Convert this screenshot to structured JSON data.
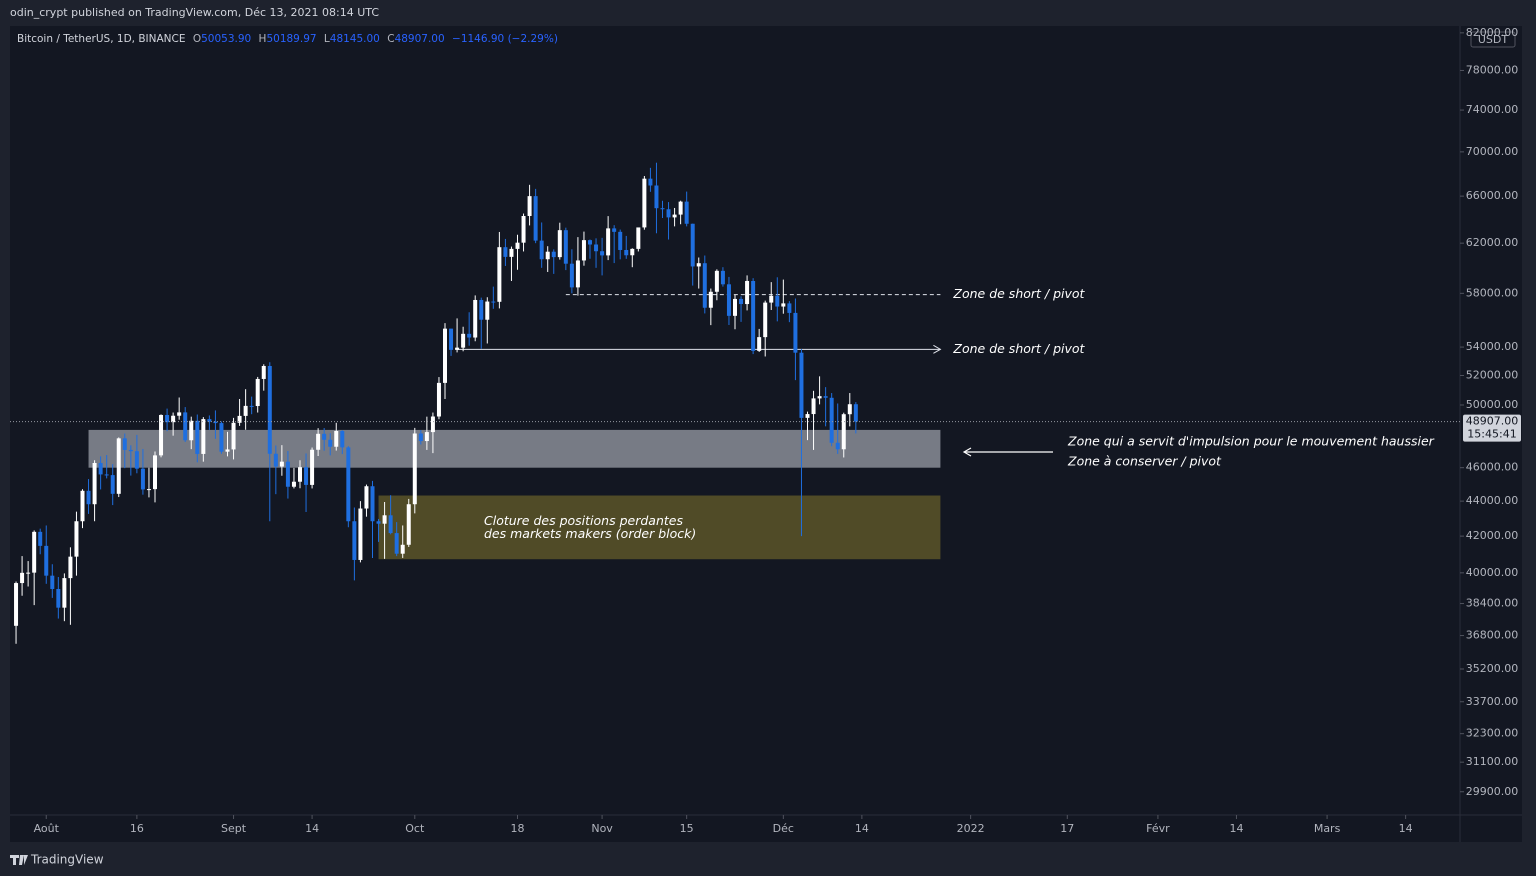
{
  "header": {
    "publisher": "odin_crypt published on TradingView.com, Déc 13, 2021 08:14 UTC"
  },
  "legend": {
    "symbol": "Bitcoin / TetherUS, 1D, BINANCE",
    "items": [
      {
        "key": "O",
        "value": "50053.90"
      },
      {
        "key": "H",
        "value": "50189.97"
      },
      {
        "key": "L",
        "value": "48145.00"
      },
      {
        "key": "C",
        "value": "48907.00"
      }
    ],
    "change": "−1146.90 (−2.29%)"
  },
  "footer": {
    "brand": "TradingView"
  },
  "chart_data": {
    "type": "candlestick",
    "log_scale": true,
    "up_color": "#ffffff",
    "down_color": "#1f6fe0",
    "unit": "USDT",
    "xlim": [
      "2021-07-26",
      "2022-03-23"
    ],
    "ylim": [
      28990,
      82750
    ],
    "xticks": [
      {
        "value": "2021-08-01",
        "label": "Août"
      },
      {
        "value": "2021-08-16",
        "label": "16"
      },
      {
        "value": "2021-09-01",
        "label": "Sept"
      },
      {
        "value": "2021-09-14",
        "label": "14"
      },
      {
        "value": "2021-10-01",
        "label": "Oct"
      },
      {
        "value": "2021-10-18",
        "label": "18"
      },
      {
        "value": "2021-11-01",
        "label": "Nov"
      },
      {
        "value": "2021-11-15",
        "label": "15"
      },
      {
        "value": "2021-12-01",
        "label": "Déc"
      },
      {
        "value": "2021-12-14",
        "label": "14"
      },
      {
        "value": "2022-01-01",
        "label": "2022"
      },
      {
        "value": "2022-01-17",
        "label": "17"
      },
      {
        "value": "2022-02-01",
        "label": "Févr"
      },
      {
        "value": "2022-02-14",
        "label": "14"
      },
      {
        "value": "2022-03-01",
        "label": "Mars"
      },
      {
        "value": "2022-03-14",
        "label": "14"
      }
    ],
    "yticks": [
      {
        "value": 82000,
        "label": "82000.00"
      },
      {
        "value": 78000,
        "label": "78000.00"
      },
      {
        "value": 74000,
        "label": "74000.00"
      },
      {
        "value": 70000,
        "label": "70000.00"
      },
      {
        "value": 66000,
        "label": "66000.00"
      },
      {
        "value": 62000,
        "label": "62000.00"
      },
      {
        "value": 58000,
        "label": "58000.00"
      },
      {
        "value": 54000,
        "label": "54000.00"
      },
      {
        "value": 52000,
        "label": "52000.00"
      },
      {
        "value": 50000,
        "label": "50000.00"
      },
      {
        "value": 46000,
        "label": "46000.00"
      },
      {
        "value": 44000,
        "label": "44000.00"
      },
      {
        "value": 42000,
        "label": "42000.00"
      },
      {
        "value": 40000,
        "label": "40000.00"
      },
      {
        "value": 38400,
        "label": "38400.00"
      },
      {
        "value": 36800,
        "label": "36800.00"
      },
      {
        "value": 35200,
        "label": "35200.00"
      },
      {
        "value": 33700,
        "label": "33700.00"
      },
      {
        "value": 32300,
        "label": "32300.00"
      },
      {
        "value": 31100,
        "label": "31100.00"
      },
      {
        "value": 29900,
        "label": "29900.00"
      }
    ],
    "last_price": {
      "value": 48907,
      "label": "48907.00",
      "countdown": "15:45:41"
    },
    "x": [
      "2021-07-27",
      "2021-07-28",
      "2021-07-29",
      "2021-07-30",
      "2021-07-31",
      "2021-08-01",
      "2021-08-02",
      "2021-08-03",
      "2021-08-04",
      "2021-08-05",
      "2021-08-06",
      "2021-08-07",
      "2021-08-08",
      "2021-08-09",
      "2021-08-10",
      "2021-08-11",
      "2021-08-12",
      "2021-08-13",
      "2021-08-14",
      "2021-08-15",
      "2021-08-16",
      "2021-08-17",
      "2021-08-18",
      "2021-08-19",
      "2021-08-20",
      "2021-08-21",
      "2021-08-22",
      "2021-08-23",
      "2021-08-24",
      "2021-08-25",
      "2021-08-26",
      "2021-08-27",
      "2021-08-28",
      "2021-08-29",
      "2021-08-30",
      "2021-08-31",
      "2021-09-01",
      "2021-09-02",
      "2021-09-03",
      "2021-09-04",
      "2021-09-05",
      "2021-09-06",
      "2021-09-07",
      "2021-09-08",
      "2021-09-09",
      "2021-09-10",
      "2021-09-11",
      "2021-09-12",
      "2021-09-13",
      "2021-09-14",
      "2021-09-15",
      "2021-09-16",
      "2021-09-17",
      "2021-09-18",
      "2021-09-19",
      "2021-09-20",
      "2021-09-21",
      "2021-09-22",
      "2021-09-23",
      "2021-09-24",
      "2021-09-25",
      "2021-09-26",
      "2021-09-27",
      "2021-09-28",
      "2021-09-29",
      "2021-09-30",
      "2021-10-01",
      "2021-10-02",
      "2021-10-03",
      "2021-10-04",
      "2021-10-05",
      "2021-10-06",
      "2021-10-07",
      "2021-10-08",
      "2021-10-09",
      "2021-10-10",
      "2021-10-11",
      "2021-10-12",
      "2021-10-13",
      "2021-10-14",
      "2021-10-15",
      "2021-10-16",
      "2021-10-17",
      "2021-10-18",
      "2021-10-19",
      "2021-10-20",
      "2021-10-21",
      "2021-10-22",
      "2021-10-23",
      "2021-10-24",
      "2021-10-25",
      "2021-10-26",
      "2021-10-27",
      "2021-10-28",
      "2021-10-29",
      "2021-10-30",
      "2021-10-31",
      "2021-11-01",
      "2021-11-02",
      "2021-11-03",
      "2021-11-04",
      "2021-11-05",
      "2021-11-06",
      "2021-11-07",
      "2021-11-08",
      "2021-11-09",
      "2021-11-10",
      "2021-11-11",
      "2021-11-12",
      "2021-11-13",
      "2021-11-14",
      "2021-11-15",
      "2021-11-16",
      "2021-11-17",
      "2021-11-18",
      "2021-11-19",
      "2021-11-20",
      "2021-11-21",
      "2021-11-22",
      "2021-11-23",
      "2021-11-24",
      "2021-11-25",
      "2021-11-26",
      "2021-11-27",
      "2021-11-28",
      "2021-11-29",
      "2021-11-30",
      "2021-12-01",
      "2021-12-02",
      "2021-12-03",
      "2021-12-04",
      "2021-12-05",
      "2021-12-06",
      "2021-12-07",
      "2021-12-08",
      "2021-12-09",
      "2021-12-10",
      "2021-12-11",
      "2021-12-12",
      "2021-12-13"
    ],
    "open": [
      37280,
      39460,
      40000,
      40010,
      42240,
      41460,
      39850,
      39150,
      38190,
      39720,
      40870,
      42840,
      44610,
      43820,
      46290,
      45590,
      45550,
      44430,
      47830,
      47100,
      47020,
      45940,
      44690,
      44710,
      46760,
      49340,
      48870,
      49290,
      49510,
      47710,
      48960,
      46850,
      49070,
      48900,
      48810,
      46990,
      47130,
      48830,
      49280,
      49940,
      49930,
      51760,
      52660,
      46860,
      46070,
      46370,
      44850,
      45150,
      46030,
      44960,
      47110,
      48120,
      47740,
      47300,
      48300,
      47260,
      42840,
      40690,
      43570,
      44880,
      42840,
      42700,
      43180,
      42170,
      41030,
      41520,
      43820,
      48140,
      47660,
      48230,
      49240,
      51490,
      55340,
      53800,
      53960,
      54960,
      54690,
      57490,
      56000,
      57370,
      57350,
      61670,
      60880,
      61530,
      62040,
      64280,
      66000,
      62210,
      60690,
      61300,
      60860,
      63080,
      60330,
      58460,
      60590,
      62250,
      61890,
      61340,
      61000,
      63230,
      62940,
      61440,
      61010,
      61530,
      63310,
      67550,
      66940,
      64950,
      64860,
      64160,
      64400,
      65520,
      63620,
      60110,
      60370,
      56900,
      58120,
      59760,
      58700,
      56290,
      57570,
      57180,
      58960,
      53730,
      54720,
      57290,
      57810,
      56990,
      57230,
      56510,
      53600,
      49150,
      49400,
      50440,
      50590,
      50480,
      47550,
      47140,
      49390,
      50050
    ],
    "high": [
      39540,
      40900,
      40630,
      42320,
      42420,
      42600,
      40460,
      39780,
      39970,
      41380,
      43390,
      44700,
      45310,
      46460,
      46700,
      46780,
      46220,
      47890,
      48140,
      47390,
      48050,
      47160,
      46000,
      47000,
      49380,
      49760,
      49500,
      50500,
      49860,
      49230,
      49370,
      49200,
      49310,
      49640,
      48910,
      48240,
      49150,
      50400,
      51060,
      50560,
      51900,
      52780,
      52920,
      47380,
      47400,
      47030,
      45990,
      46460,
      46880,
      47250,
      48480,
      48490,
      48160,
      48830,
      48350,
      47340,
      43630,
      44000,
      44980,
      45200,
      42970,
      43950,
      44350,
      42790,
      42600,
      44130,
      48500,
      48360,
      49230,
      49500,
      51890,
      55750,
      55340,
      56100,
      55480,
      56560,
      57840,
      57670,
      57700,
      58520,
      62930,
      62350,
      61720,
      62700,
      64490,
      67000,
      66640,
      63730,
      61750,
      61490,
      63710,
      63290,
      61500,
      62500,
      62960,
      62300,
      62400,
      62440,
      64270,
      63500,
      63130,
      62600,
      61580,
      63290,
      67790,
      68530,
      69000,
      65600,
      65480,
      64970,
      65600,
      66400,
      63630,
      60830,
      60990,
      58370,
      59880,
      60050,
      59280,
      57880,
      57770,
      59400,
      59180,
      55320,
      57440,
      58870,
      59250,
      59070,
      57400,
      57600,
      53860,
      49560,
      50950,
      51940,
      51200,
      50800,
      50100,
      49490,
      50800,
      50190
    ],
    "low": [
      36400,
      38800,
      39280,
      38320,
      41000,
      39420,
      38690,
      37640,
      37510,
      37330,
      39850,
      42450,
      43260,
      42840,
      44690,
      45350,
      43770,
      44240,
      45970,
      45520,
      45660,
      44380,
      44220,
      43930,
      46640,
      48290,
      48000,
      49030,
      47600,
      47150,
      46330,
      46370,
      48370,
      47800,
      46860,
      46700,
      46510,
      48630,
      48380,
      49390,
      49500,
      50960,
      42840,
      44410,
      45510,
      44150,
      44750,
      44760,
      43370,
      44750,
      46720,
      47050,
      46760,
      47060,
      46840,
      42500,
      39600,
      40560,
      43100,
      40800,
      41680,
      40750,
      42100,
      40900,
      40800,
      41400,
      43290,
      47440,
      47100,
      46900,
      49060,
      50400,
      53370,
      53620,
      53700,
      54100,
      54420,
      53880,
      54260,
      56820,
      56850,
      60150,
      58960,
      59850,
      61320,
      63480,
      62000,
      60000,
      59670,
      59520,
      60660,
      59820,
      58000,
      57820,
      60170,
      60730,
      60000,
      59400,
      60620,
      60380,
      60680,
      60720,
      60050,
      61320,
      63120,
      66380,
      62820,
      64110,
      62300,
      63400,
      63580,
      63400,
      58600,
      58370,
      56470,
      55600,
      57470,
      58520,
      55610,
      55300,
      55840,
      56700,
      53500,
      53650,
      53330,
      56730,
      55880,
      56450,
      55820,
      51680,
      42000,
      47720,
      47100,
      50040,
      48600,
      47330,
      46850,
      46630,
      48600,
      48145
    ],
    "close": [
      39460,
      40000,
      40010,
      42240,
      41460,
      39850,
      39150,
      38190,
      39720,
      40870,
      42840,
      44610,
      43820,
      46290,
      45590,
      45550,
      44430,
      47830,
      47100,
      47020,
      45940,
      44690,
      44710,
      46760,
      49340,
      48870,
      49290,
      49510,
      47710,
      48960,
      46850,
      49070,
      48900,
      48810,
      46990,
      47130,
      48830,
      49280,
      49940,
      49930,
      51760,
      52660,
      46860,
      46070,
      46370,
      44850,
      45150,
      46030,
      44960,
      47110,
      48120,
      47740,
      47300,
      48300,
      47260,
      42840,
      40690,
      43570,
      44880,
      42840,
      42700,
      43180,
      42170,
      41030,
      41520,
      43820,
      48140,
      47660,
      48230,
      49240,
      51490,
      55340,
      53800,
      53960,
      54960,
      54690,
      57490,
      56000,
      57370,
      57350,
      61670,
      60880,
      61530,
      62040,
      64280,
      66000,
      62210,
      60690,
      61300,
      60860,
      63080,
      60330,
      58460,
      60590,
      62250,
      61890,
      61340,
      61000,
      63230,
      62940,
      61440,
      61010,
      61530,
      63310,
      67550,
      66940,
      64950,
      64860,
      64160,
      64400,
      65520,
      63620,
      60110,
      60370,
      56900,
      58120,
      59760,
      58700,
      56290,
      57570,
      57180,
      58960,
      53730,
      54720,
      57290,
      57810,
      56990,
      57230,
      56510,
      53600,
      49150,
      49400,
      50440,
      50590,
      50480,
      47550,
      47140,
      49390,
      50050,
      48907
    ],
    "zones": [
      {
        "y": [
          46000,
          48370
        ],
        "x": [
          "2021-08-08",
          "2021-12-27"
        ],
        "color": "#8a8d96"
      },
      {
        "y": [
          40730,
          44330
        ],
        "x": [
          "2021-09-25",
          "2021-12-27"
        ],
        "color": "#5c5528",
        "text": [
          "Cloture des positions perdantes",
          "des markets makers (order block)"
        ]
      }
    ],
    "levels": [
      {
        "y": 57900,
        "x": [
          "2021-10-26",
          "2021-12-27"
        ],
        "style": "dashed",
        "text": "Zone de short / pivot"
      },
      {
        "y": 53840,
        "x": [
          "2021-10-08",
          "2021-12-27"
        ],
        "style": "solid",
        "text": "Zone de short / pivot"
      }
    ],
    "notes": [
      "Zone qui a servit d'impulsion pour le mouvement haussier",
      "Zone à conserver / pivot"
    ]
  }
}
